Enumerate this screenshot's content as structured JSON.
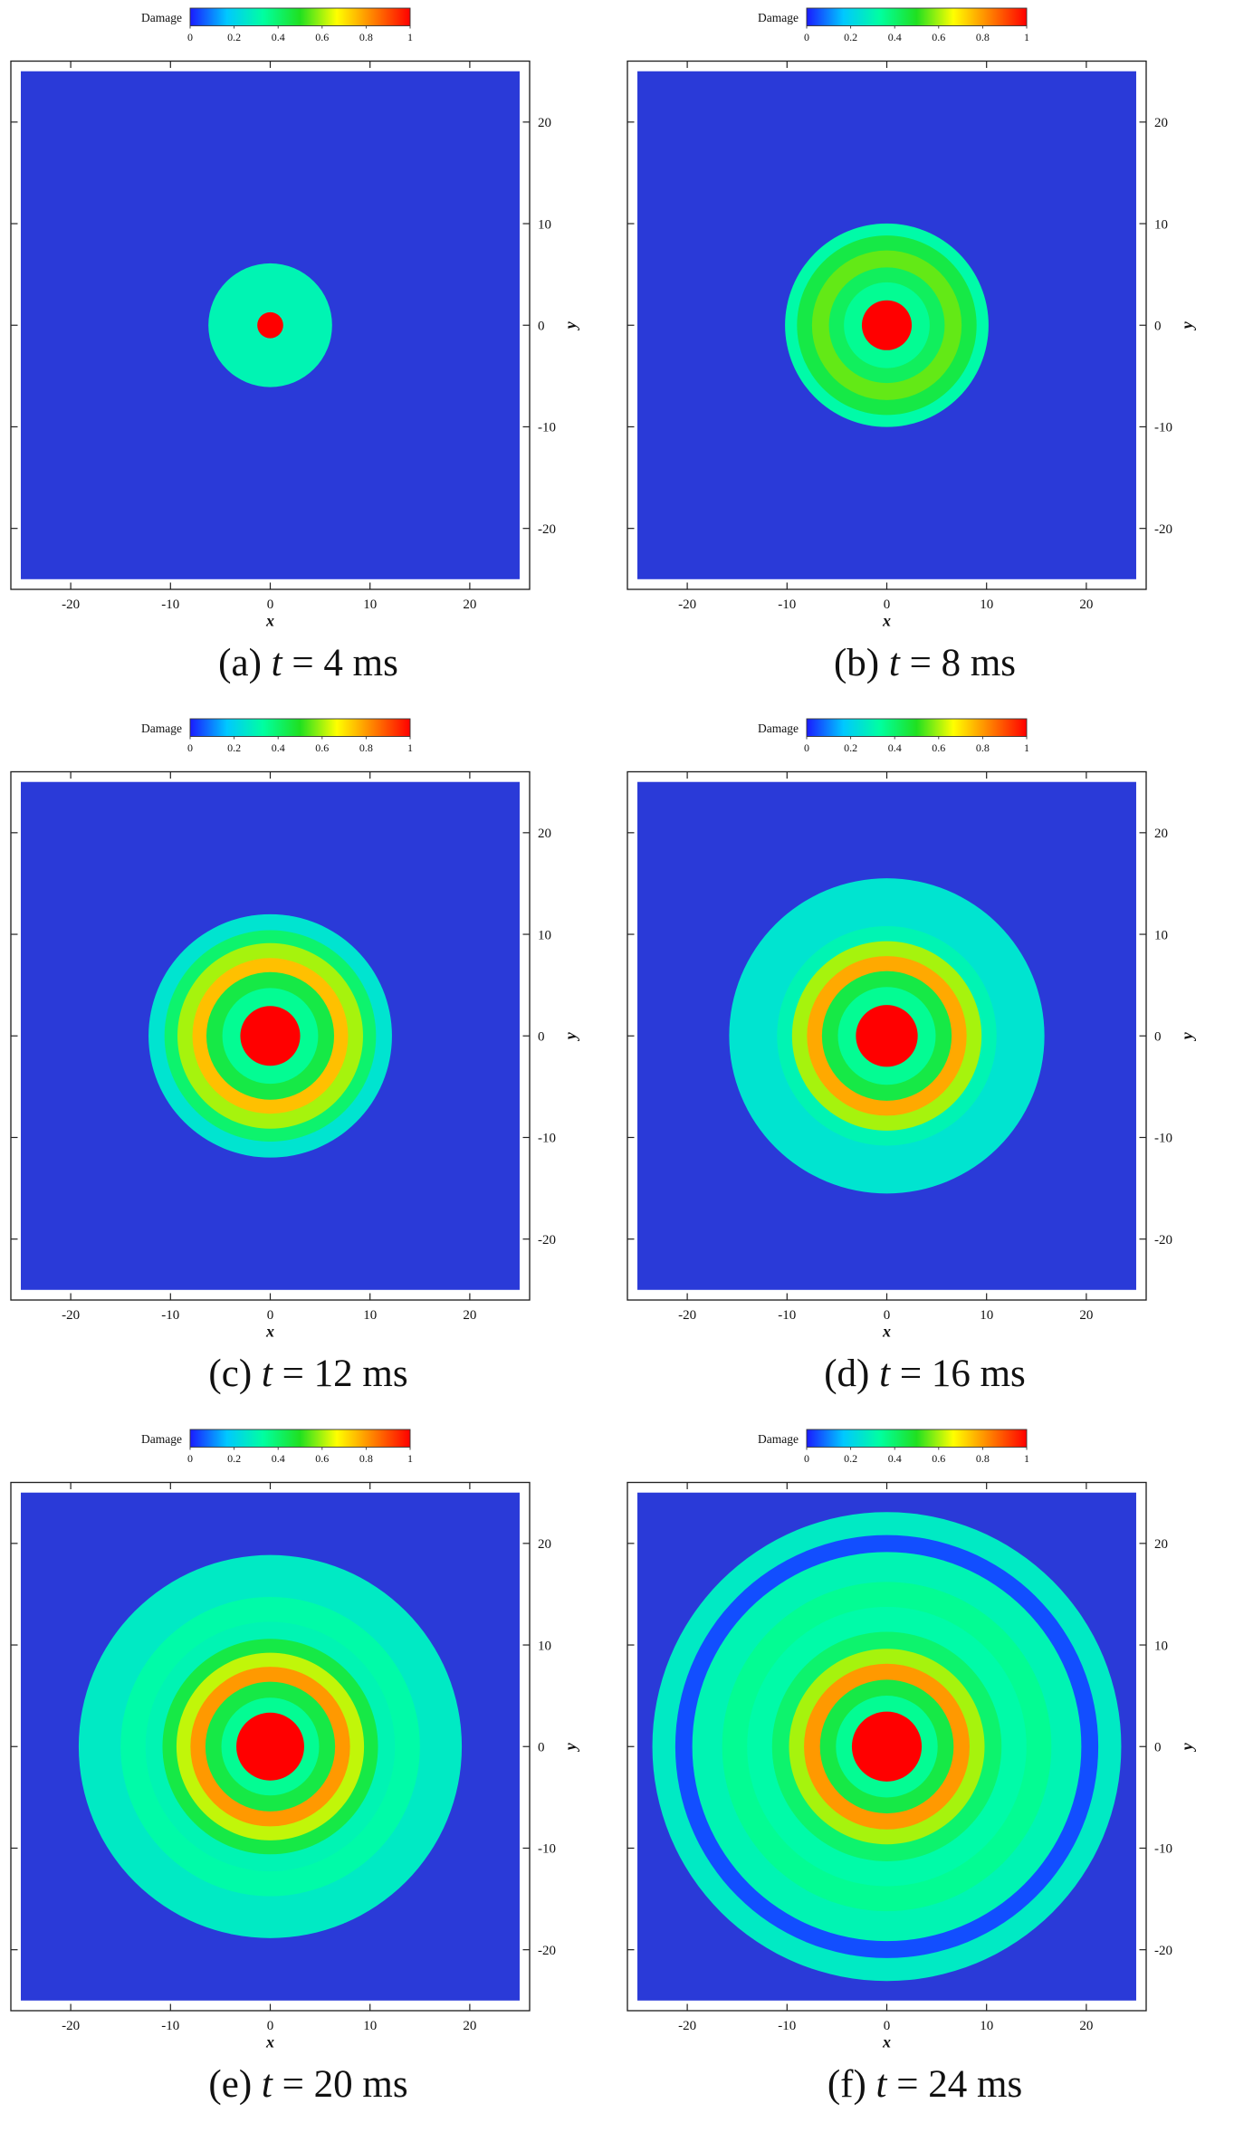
{
  "figure_description_free": true,
  "colorbar": {
    "label": "Damage",
    "ticks": [
      "0",
      "0.2",
      "0.4",
      "0.6",
      "0.8",
      "1"
    ],
    "range": [
      0,
      1
    ],
    "colormap": [
      "#1a1aff",
      "#00c8ff",
      "#00ffa0",
      "#20e020",
      "#ffff00",
      "#ff8000",
      "#ff0000"
    ]
  },
  "colors": {
    "background_field": "#2a3ad8",
    "damage_low": "#40e0d8",
    "damage_mid": "#22d860",
    "damage_high": "#e8e020",
    "damage_full": "#ff1010"
  },
  "chart_data": [
    {
      "type": "heatmap",
      "title": "",
      "caption_prefix": "(a)",
      "time_var": "t",
      "time_value": "4",
      "time_unit": "ms",
      "xlabel": "x",
      "ylabel": "y",
      "xlim": [
        -26,
        26
      ],
      "ylim": [
        -26,
        26
      ],
      "domain_extent": [
        -25,
        25
      ],
      "xticks": [
        -20,
        -10,
        0,
        10,
        20
      ],
      "yticks": [
        -20,
        -10,
        0,
        10,
        20
      ],
      "rings": [
        {
          "r": 6.2,
          "damage": 0.3
        },
        {
          "r": 1.3,
          "damage": 1.0
        }
      ]
    },
    {
      "type": "heatmap",
      "title": "",
      "caption_prefix": "(b)",
      "time_var": "t",
      "time_value": "8",
      "time_unit": "ms",
      "xlabel": "x",
      "ylabel": "y",
      "xlim": [
        -26,
        26
      ],
      "ylim": [
        -26,
        26
      ],
      "domain_extent": [
        -25,
        25
      ],
      "xticks": [
        -20,
        -10,
        0,
        10,
        20
      ],
      "yticks": [
        -20,
        -10,
        0,
        10,
        20
      ],
      "rings": [
        {
          "r": 10.2,
          "damage": 0.32
        },
        {
          "r": 9.0,
          "damage": 0.45
        },
        {
          "r": 7.5,
          "damage": 0.55
        },
        {
          "r": 5.8,
          "damage": 0.42
        },
        {
          "r": 4.3,
          "damage": 0.35
        },
        {
          "r": 2.5,
          "damage": 1.0
        }
      ]
    },
    {
      "type": "heatmap",
      "title": "",
      "caption_prefix": "(c)",
      "time_var": "t",
      "time_value": "12",
      "time_unit": "ms",
      "xlabel": "x",
      "ylabel": "y",
      "xlim": [
        -26,
        26
      ],
      "ylim": [
        -26,
        26
      ],
      "domain_extent": [
        -25,
        25
      ],
      "xticks": [
        -20,
        -10,
        0,
        10,
        20
      ],
      "yticks": [
        -20,
        -10,
        0,
        10,
        20
      ],
      "rings": [
        {
          "r": 12.2,
          "damage": 0.25
        },
        {
          "r": 10.6,
          "damage": 0.4
        },
        {
          "r": 9.3,
          "damage": 0.6
        },
        {
          "r": 7.8,
          "damage": 0.75
        },
        {
          "r": 6.4,
          "damage": 0.45
        },
        {
          "r": 4.8,
          "damage": 0.35
        },
        {
          "r": 3.0,
          "damage": 1.0
        }
      ]
    },
    {
      "type": "heatmap",
      "title": "",
      "caption_prefix": "(d)",
      "time_var": "t",
      "time_value": "16",
      "time_unit": "ms",
      "xlabel": "x",
      "ylabel": "y",
      "xlim": [
        -26,
        26
      ],
      "ylim": [
        -26,
        26
      ],
      "domain_extent": [
        -25,
        25
      ],
      "xticks": [
        -20,
        -10,
        0,
        10,
        20
      ],
      "yticks": [
        -20,
        -10,
        0,
        10,
        20
      ],
      "rings": [
        {
          "r": 15.8,
          "damage": 0.25
        },
        {
          "r": 11.0,
          "damage": 0.3
        },
        {
          "r": 9.5,
          "damage": 0.6
        },
        {
          "r": 8.0,
          "damage": 0.78
        },
        {
          "r": 6.5,
          "damage": 0.45
        },
        {
          "r": 4.9,
          "damage": 0.35
        },
        {
          "r": 3.1,
          "damage": 1.0
        }
      ]
    },
    {
      "type": "heatmap",
      "title": "",
      "caption_prefix": "(e)",
      "time_var": "t",
      "time_value": "20",
      "time_unit": "ms",
      "xlabel": "x",
      "ylabel": "y",
      "xlim": [
        -26,
        26
      ],
      "ylim": [
        -26,
        26
      ],
      "domain_extent": [
        -25,
        25
      ],
      "xticks": [
        -20,
        -10,
        0,
        10,
        20
      ],
      "yticks": [
        -20,
        -10,
        0,
        10,
        20
      ],
      "rings": [
        {
          "r": 19.2,
          "damage": 0.27
        },
        {
          "r": 15.0,
          "damage": 0.32
        },
        {
          "r": 12.5,
          "damage": 0.3
        },
        {
          "r": 10.8,
          "damage": 0.45
        },
        {
          "r": 9.4,
          "damage": 0.62
        },
        {
          "r": 8.0,
          "damage": 0.8
        },
        {
          "r": 6.5,
          "damage": 0.45
        },
        {
          "r": 4.9,
          "damage": 0.35
        },
        {
          "r": 3.4,
          "damage": 1.0
        }
      ]
    },
    {
      "type": "heatmap",
      "title": "",
      "caption_prefix": "(f)",
      "time_var": "t",
      "time_value": "24",
      "time_unit": "ms",
      "xlabel": "x",
      "ylabel": "y",
      "xlim": [
        -26,
        26
      ],
      "ylim": [
        -26,
        26
      ],
      "domain_extent": [
        -25,
        25
      ],
      "xticks": [
        -20,
        -10,
        0,
        10,
        20
      ],
      "yticks": [
        -20,
        -10,
        0,
        10,
        20
      ],
      "rings": [
        {
          "r": 23.5,
          "damage": 0.27
        },
        {
          "r": 21.2,
          "damage": 0.05
        },
        {
          "r": 19.5,
          "damage": 0.3
        },
        {
          "r": 16.5,
          "damage": 0.35
        },
        {
          "r": 14.0,
          "damage": 0.32
        },
        {
          "r": 11.5,
          "damage": 0.4
        },
        {
          "r": 9.8,
          "damage": 0.6
        },
        {
          "r": 8.3,
          "damage": 0.8
        },
        {
          "r": 6.7,
          "damage": 0.45
        },
        {
          "r": 5.1,
          "damage": 0.35
        },
        {
          "r": 3.5,
          "damage": 1.0
        }
      ]
    }
  ]
}
